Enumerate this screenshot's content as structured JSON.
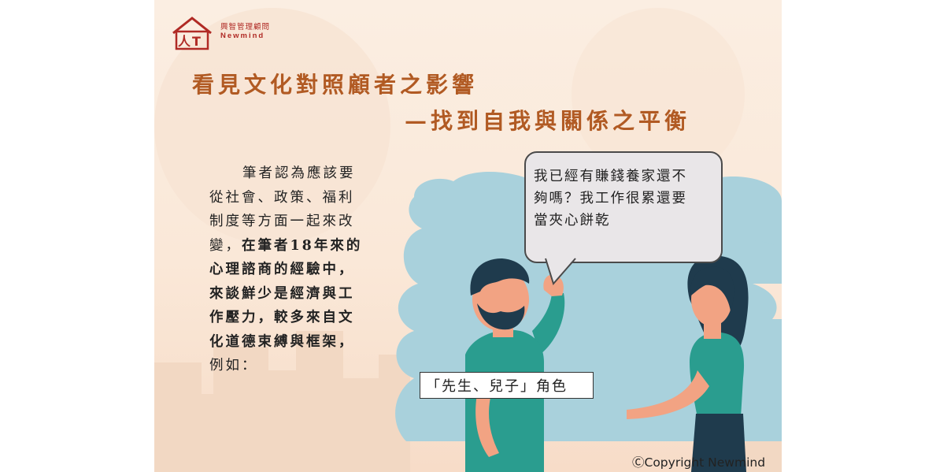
{
  "logo": {
    "name_cn": "興智管理顧問",
    "name_en": "Newmind"
  },
  "title": {
    "line1": "看見文化對照顧者之影響",
    "line2": "—找到自我與關係之平衡"
  },
  "body": {
    "line1": "筆者認為應該要",
    "line2": "從社會、政策、福利",
    "line3": "制度等方面一起來改",
    "line4_normal": "變，",
    "line4_bold": "在筆者18年來的",
    "line5": "心理諮商的經驗中，",
    "line6": "來談鮮少是經濟與工",
    "line7": "作壓力，較多來自文",
    "line8": "化道德束縛與框架，",
    "line9": "例如："
  },
  "speech_bubble": {
    "line1": "我已經有賺錢養家還不",
    "line2": "夠嗎？我工作很累還要",
    "line3": "當夾心餅乾"
  },
  "role_label": "「先生、兒子」角色",
  "copyright": "ⒸCopyright Newmind",
  "colors": {
    "background": "#fbeee2",
    "title": "#b15a23",
    "logo": "#b02a25",
    "cloud": "#a9d1dc",
    "teal_shirt": "#2a9d8f",
    "skin": "#f2a383",
    "hair": "#1f3b4d"
  }
}
